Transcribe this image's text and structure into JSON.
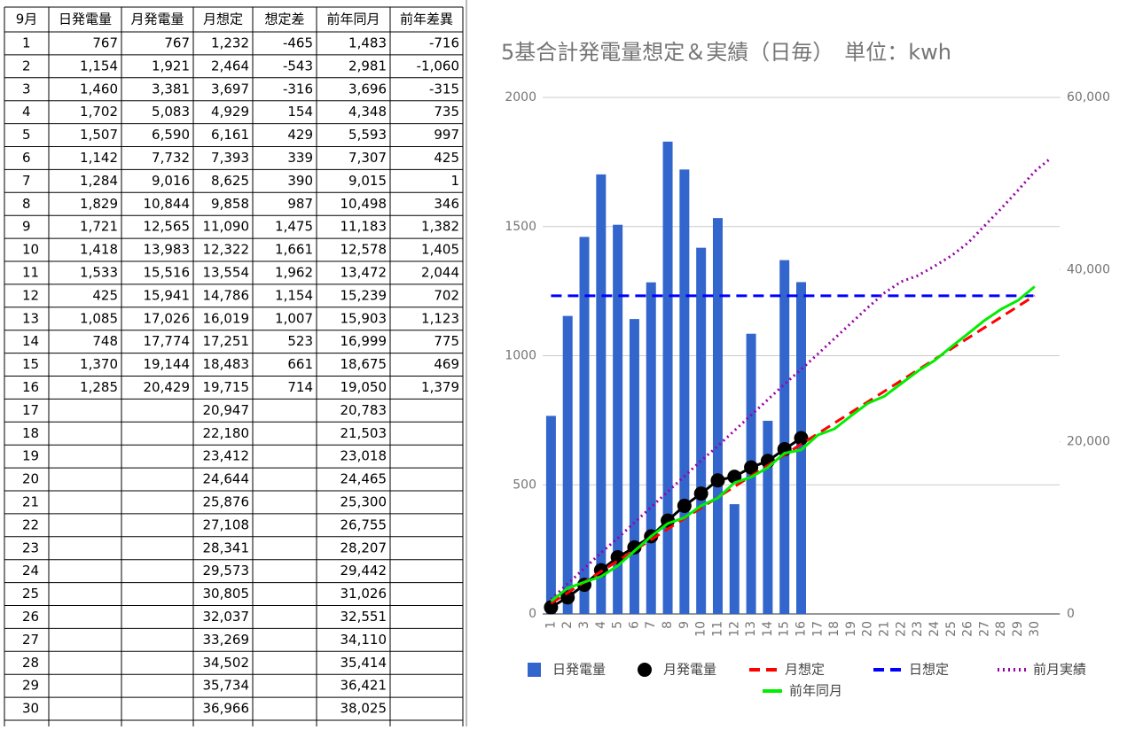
{
  "table": {
    "header": [
      "9月",
      "日発電量",
      "月発電量",
      "月想定",
      "想定差",
      "前年同月",
      "前年差異"
    ],
    "negative_color": "#0000ff",
    "positive_color": "#ff0000",
    "rows": [
      [
        "1",
        "767",
        "767",
        "1,232",
        "-465",
        "1,483",
        "-716"
      ],
      [
        "2",
        "1,154",
        "1,921",
        "2,464",
        "-543",
        "2,981",
        "-1,060"
      ],
      [
        "3",
        "1,460",
        "3,381",
        "3,697",
        "-316",
        "3,696",
        "-315"
      ],
      [
        "4",
        "1,702",
        "5,083",
        "4,929",
        "154",
        "4,348",
        "735"
      ],
      [
        "5",
        "1,507",
        "6,590",
        "6,161",
        "429",
        "5,593",
        "997"
      ],
      [
        "6",
        "1,142",
        "7,732",
        "7,393",
        "339",
        "7,307",
        "425"
      ],
      [
        "7",
        "1,284",
        "9,016",
        "8,625",
        "390",
        "9,015",
        "1"
      ],
      [
        "8",
        "1,829",
        "10,844",
        "9,858",
        "987",
        "10,498",
        "346"
      ],
      [
        "9",
        "1,721",
        "12,565",
        "11,090",
        "1,475",
        "11,183",
        "1,382"
      ],
      [
        "10",
        "1,418",
        "13,983",
        "12,322",
        "1,661",
        "12,578",
        "1,405"
      ],
      [
        "11",
        "1,533",
        "15,516",
        "13,554",
        "1,962",
        "13,472",
        "2,044"
      ],
      [
        "12",
        "425",
        "15,941",
        "14,786",
        "1,154",
        "15,239",
        "702"
      ],
      [
        "13",
        "1,085",
        "17,026",
        "16,019",
        "1,007",
        "15,903",
        "1,123"
      ],
      [
        "14",
        "748",
        "17,774",
        "17,251",
        "523",
        "16,999",
        "775"
      ],
      [
        "15",
        "1,370",
        "19,144",
        "18,483",
        "661",
        "18,675",
        "469"
      ],
      [
        "16",
        "1,285",
        "20,429",
        "19,715",
        "714",
        "19,050",
        "1,379"
      ],
      [
        "17",
        null,
        null,
        "20,947",
        null,
        "20,783",
        null
      ],
      [
        "18",
        null,
        null,
        "22,180",
        null,
        "21,503",
        null
      ],
      [
        "19",
        null,
        null,
        "23,412",
        null,
        "23,018",
        null
      ],
      [
        "20",
        null,
        null,
        "24,644",
        null,
        "24,465",
        null
      ],
      [
        "21",
        null,
        null,
        "25,876",
        null,
        "25,300",
        null
      ],
      [
        "22",
        null,
        null,
        "27,108",
        null,
        "26,755",
        null
      ],
      [
        "23",
        null,
        null,
        "28,341",
        null,
        "28,207",
        null
      ],
      [
        "24",
        null,
        null,
        "29,573",
        null,
        "29,442",
        null
      ],
      [
        "25",
        null,
        null,
        "30,805",
        null,
        "31,026",
        null
      ],
      [
        "26",
        null,
        null,
        "32,037",
        null,
        "32,551",
        null
      ],
      [
        "27",
        null,
        null,
        "33,269",
        null,
        "34,110",
        null
      ],
      [
        "28",
        null,
        null,
        "34,502",
        null,
        "35,414",
        null
      ],
      [
        "29",
        null,
        null,
        "35,734",
        null,
        "36,421",
        null
      ],
      [
        "30",
        null,
        null,
        "36,966",
        null,
        "38,025",
        null
      ]
    ]
  },
  "chart_data": {
    "type": "combo",
    "title": "5基合計発電量想定＆実績（日毎）　単位：kwh",
    "categories": [
      "1",
      "2",
      "3",
      "4",
      "5",
      "6",
      "7",
      "8",
      "9",
      "10",
      "11",
      "12",
      "13",
      "14",
      "15",
      "16",
      "17",
      "18",
      "19",
      "20",
      "21",
      "22",
      "23",
      "24",
      "25",
      "26",
      "27",
      "28",
      "29",
      "30",
      null
    ],
    "ylim": [
      0,
      2000
    ],
    "yticks": [
      0,
      500,
      1000,
      1500,
      2000
    ],
    "y2lim": [
      0,
      60000
    ],
    "y2ticks": [
      0,
      {
        "value": 20000,
        "label": "20,000"
      },
      {
        "value": 40000,
        "label": "40,000"
      },
      {
        "value": 60000,
        "label": "60,000"
      }
    ],
    "grid": true,
    "legend": "bottom",
    "series": [
      {
        "name": "日発電量",
        "type": "bar",
        "color": "#3366cc",
        "values": [
          767,
          1154,
          1460,
          1702,
          1507,
          1142,
          1284,
          1829,
          1721,
          1418,
          1533,
          425,
          1085,
          748,
          1370,
          1285,
          null,
          null,
          null,
          null,
          null,
          null,
          null,
          null,
          null,
          null,
          null,
          null,
          null,
          null,
          null
        ]
      },
      {
        "name": "月発電量",
        "type": "line",
        "axis": "y2",
        "color": "#000000",
        "line_style": "solid",
        "marker": "circle",
        "values": [
          767,
          1921,
          3381,
          5083,
          6590,
          7732,
          9016,
          10844,
          12565,
          13983,
          15516,
          15941,
          17026,
          17774,
          19144,
          20429,
          null,
          null,
          null,
          null,
          null,
          null,
          null,
          null,
          null,
          null,
          null,
          null,
          null,
          null,
          null
        ]
      },
      {
        "name": "月想定",
        "type": "line",
        "axis": "y2",
        "color": "#ff0000",
        "line_style": "dashed",
        "values": [
          1232,
          2464,
          3697,
          4929,
          6161,
          7393,
          8625,
          9858,
          11090,
          12322,
          13554,
          14786,
          16019,
          17251,
          18483,
          19715,
          20947,
          22180,
          23412,
          24644,
          25876,
          27108,
          28341,
          29573,
          30805,
          32037,
          33269,
          34502,
          35734,
          36966,
          null
        ]
      },
      {
        "name": "日想定",
        "type": "line",
        "color": "#0000ff",
        "line_style": "dashed",
        "values": [
          1232,
          1232,
          1232,
          1232,
          1232,
          1232,
          1232,
          1232,
          1232,
          1232,
          1232,
          1232,
          1232,
          1232,
          1232,
          1232,
          1232,
          1232,
          1232,
          1232,
          1232,
          1232,
          1232,
          1232,
          1232,
          1232,
          1232,
          1232,
          1232,
          1232,
          null
        ]
      },
      {
        "name": "前月実績",
        "type": "line",
        "axis": "y2",
        "color": "#9900aa",
        "line_style": "dotted",
        "values": [
          1700,
          3500,
          5300,
          7100,
          8800,
          10600,
          12400,
          14200,
          16000,
          17800,
          19500,
          21300,
          23100,
          24900,
          26700,
          28400,
          30200,
          32000,
          33800,
          35600,
          37300,
          38600,
          39300,
          40400,
          41600,
          43100,
          45100,
          47100,
          49200,
          51400,
          53000
        ]
      },
      {
        "name": "前年同月",
        "type": "line",
        "axis": "y2",
        "color": "#00ee00",
        "line_style": "solid",
        "values": [
          1483,
          2981,
          3696,
          4348,
          5593,
          7307,
          9015,
          10498,
          11183,
          12578,
          13472,
          15239,
          15903,
          16999,
          18675,
          19050,
          20783,
          21503,
          23018,
          24465,
          25300,
          26755,
          28207,
          29442,
          31026,
          32551,
          34110,
          35414,
          36421,
          38025,
          null
        ]
      }
    ]
  }
}
